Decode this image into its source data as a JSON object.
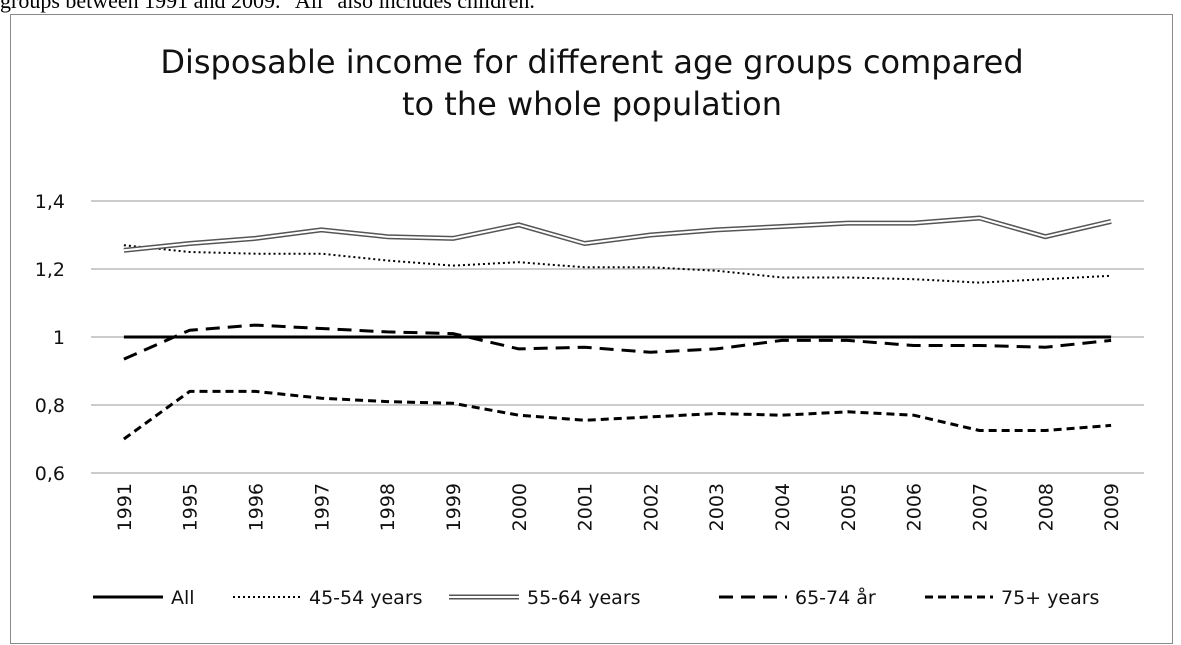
{
  "caption": "groups between 1991 and 2009. \"All\" also includes children.",
  "chart_data": {
    "type": "line",
    "title_lines": [
      "Disposable income for different age groups compared",
      "to the whole population"
    ],
    "categories": [
      "1991",
      "1995",
      "1996",
      "1997",
      "1998",
      "1999",
      "2000",
      "2001",
      "2002",
      "2003",
      "2004",
      "2005",
      "2006",
      "2007",
      "2008",
      "2009"
    ],
    "ylim": [
      0.6,
      1.4
    ],
    "yticks": [
      "0,6",
      "0,8",
      "1",
      "1,2",
      "1,4"
    ],
    "ytick_values": [
      0.6,
      0.8,
      1.0,
      1.2,
      1.4
    ],
    "grid": true,
    "legend_position": "bottom",
    "series": [
      {
        "name": "All",
        "style": "solid",
        "values": [
          1.0,
          1.0,
          1.0,
          1.0,
          1.0,
          1.0,
          1.0,
          1.0,
          1.0,
          1.0,
          1.0,
          1.0,
          1.0,
          1.0,
          1.0,
          1.0
        ]
      },
      {
        "name": "45-54 years",
        "style": "dotted",
        "values": [
          1.27,
          1.25,
          1.245,
          1.245,
          1.225,
          1.21,
          1.22,
          1.205,
          1.205,
          1.195,
          1.175,
          1.175,
          1.17,
          1.16,
          1.17,
          1.18
        ]
      },
      {
        "name": "55-64 years",
        "style": "double",
        "values": [
          1.255,
          1.275,
          1.29,
          1.315,
          1.295,
          1.29,
          1.33,
          1.275,
          1.3,
          1.315,
          1.325,
          1.335,
          1.335,
          1.35,
          1.295,
          1.34
        ]
      },
      {
        "name": "65-74 år",
        "style": "longdash",
        "values": [
          0.935,
          1.02,
          1.035,
          1.025,
          1.015,
          1.01,
          0.965,
          0.97,
          0.955,
          0.965,
          0.99,
          0.99,
          0.975,
          0.975,
          0.97,
          0.99
        ]
      },
      {
        "name": "75+ years",
        "style": "dash",
        "values": [
          0.7,
          0.84,
          0.84,
          0.82,
          0.81,
          0.805,
          0.77,
          0.755,
          0.765,
          0.775,
          0.77,
          0.78,
          0.77,
          0.725,
          0.725,
          0.74
        ]
      }
    ]
  }
}
